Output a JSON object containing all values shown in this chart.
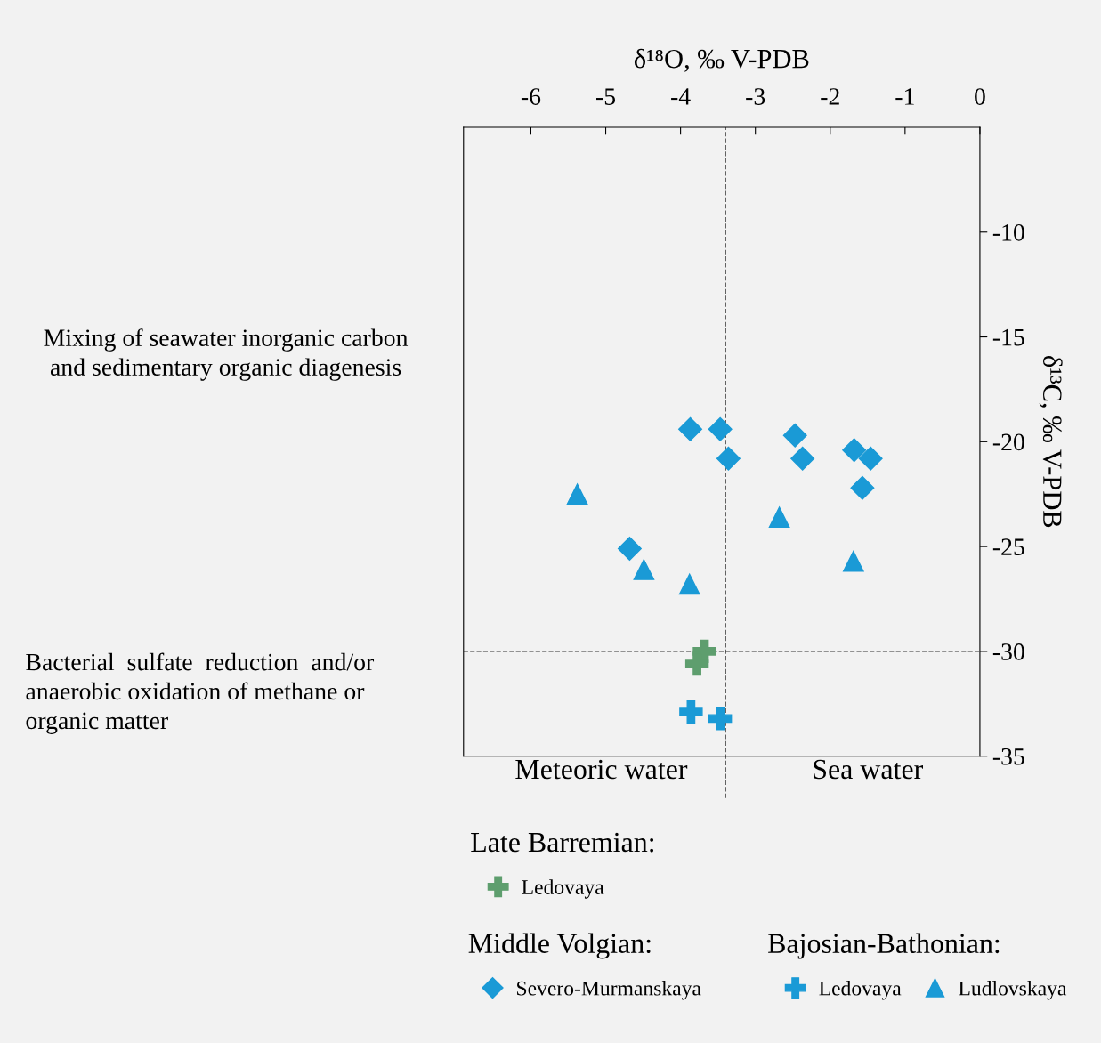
{
  "chart_data": {
    "type": "scatter",
    "xlabel": "δ¹⁸O, ‰ V-PDB",
    "ylabel": "δ¹³C, ‰ V-PDB",
    "xlim": [
      -6.9,
      0
    ],
    "xticks": [
      -6,
      -5,
      -4,
      -3,
      -2,
      -1,
      0
    ],
    "ylim": [
      -35,
      -5
    ],
    "yticks": [
      -10,
      -15,
      -20,
      -25,
      -30,
      -35
    ],
    "grid": false,
    "legend": "bottom",
    "ref_lines": [
      {
        "axis": "x",
        "value": -3.4,
        "line_style": "dashed",
        "color": "#333333"
      },
      {
        "axis": "y",
        "value": -30,
        "line_style": "dashed",
        "color": "#333333"
      }
    ],
    "annotations": [
      "Mixing of seawater inorganic carbon\nand sedimentary organic diagenesis",
      "Bacterial  sulfate  reduction  and/or\nanaerobic oxidation of methane or\norganic matter",
      "Meteoric water",
      "Sea water",
      "Late Barremian:",
      "Middle Volgian:",
      "Bajosian-Bathonian:"
    ],
    "series": [
      {
        "name": "Ledovaya",
        "color": "#5e9e6e",
        "marker": "cross",
        "x": [
          -3.68,
          -3.78
        ],
        "values": [
          -30.0,
          -30.6
        ]
      },
      {
        "name": "Severo-Murmanskaya",
        "color": "#1a9ad6",
        "marker": "diamond",
        "x": [
          -3.87,
          -3.47,
          -3.36,
          -2.47,
          -2.37,
          -1.68,
          -1.46,
          -1.57,
          -4.68
        ],
        "values": [
          -19.4,
          -19.4,
          -20.8,
          -19.7,
          -20.8,
          -20.4,
          -20.8,
          -22.2,
          -25.1
        ]
      },
      {
        "name": "Ledovaya",
        "color": "#1a9ad6",
        "marker": "cross",
        "x": [
          -3.86,
          -3.47
        ],
        "values": [
          -32.9,
          -33.2
        ]
      },
      {
        "name": "Ludlovskaya",
        "color": "#1a9ad6",
        "marker": "triangle",
        "x": [
          -5.38,
          -2.68,
          -4.49,
          -3.88,
          -1.69
        ],
        "values": [
          -22.5,
          -23.6,
          -26.1,
          -26.8,
          -25.7
        ]
      }
    ]
  }
}
